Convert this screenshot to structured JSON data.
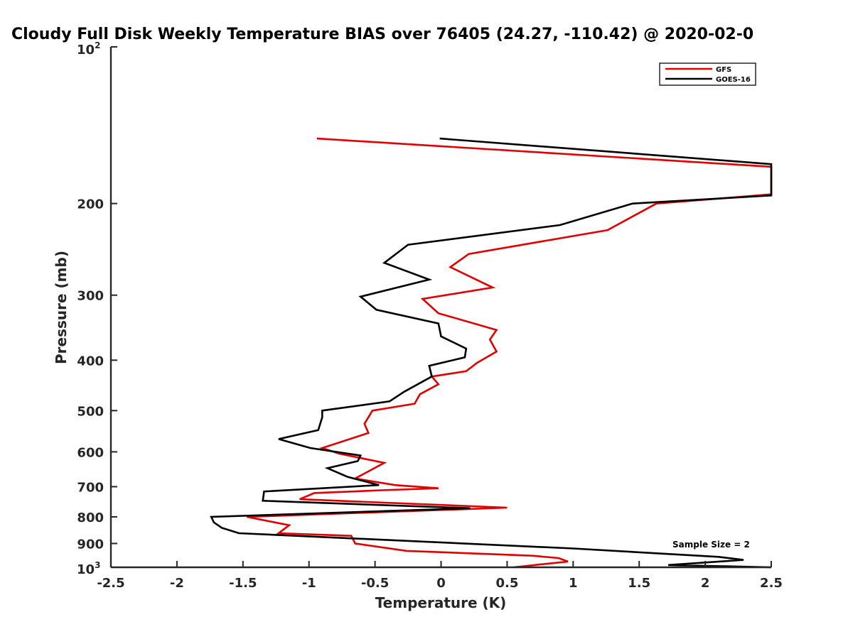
{
  "chart_data": {
    "type": "line",
    "title": "Cloudy Full Disk Weekly Temperature BIAS over 76405 (24.27, -110.42) @ 2020-02-0",
    "xlabel": "Temperature (K)",
    "ylabel": "Pressure (mb)",
    "xlim": [
      -2.5,
      2.5
    ],
    "ylim": [
      100,
      1000
    ],
    "yscale": "log",
    "y_reversed": true,
    "x_ticks": [
      -2.5,
      -2,
      -1.5,
      -1,
      -0.5,
      0,
      0.5,
      1,
      1.5,
      2,
      2.5
    ],
    "x_tick_labels": [
      "-2.5",
      "-2",
      "-1.5",
      "-1",
      "-0.5",
      "0",
      "0.5",
      "1",
      "1.5",
      "2",
      "2.5"
    ],
    "y_ticks": [
      200,
      300,
      400,
      500,
      600,
      700,
      800,
      900
    ],
    "y_tick_labels": [
      "200",
      "300",
      "400",
      "500",
      "600",
      "700",
      "800",
      "900"
    ],
    "y_top_label_base": "10",
    "y_top_label_exp": "2",
    "y_bottom_label_base": "10",
    "y_bottom_label_exp": "3",
    "legend_position": "top-right",
    "annotation": "Sample Size = 2",
    "series": [
      {
        "name": "GFS",
        "color": "#e00000",
        "points": [
          [
            -0.94,
            150
          ],
          [
            2.5,
            170
          ],
          [
            2.5,
            192
          ],
          [
            1.63,
            200
          ],
          [
            1.26,
            225
          ],
          [
            0.21,
            250
          ],
          [
            0.07,
            265
          ],
          [
            0.39,
            290
          ],
          [
            -0.14,
            305
          ],
          [
            -0.02,
            325
          ],
          [
            0.42,
            350
          ],
          [
            0.37,
            365
          ],
          [
            0.42,
            385
          ],
          [
            0.27,
            405
          ],
          [
            0.19,
            420
          ],
          [
            -0.07,
            430
          ],
          [
            -0.02,
            445
          ],
          [
            -0.16,
            465
          ],
          [
            -0.2,
            485
          ],
          [
            -0.52,
            500
          ],
          [
            -0.58,
            530
          ],
          [
            -0.55,
            552
          ],
          [
            -0.9,
            590
          ],
          [
            -0.77,
            605
          ],
          [
            -0.43,
            630
          ],
          [
            -0.53,
            650
          ],
          [
            -0.65,
            675
          ],
          [
            -0.35,
            695
          ],
          [
            -0.02,
            705
          ],
          [
            -0.38,
            710
          ],
          [
            -0.96,
            720
          ],
          [
            -1.07,
            740
          ],
          [
            0.5,
            768
          ],
          [
            -1.47,
            800
          ],
          [
            -1.15,
            830
          ],
          [
            -1.23,
            860
          ],
          [
            -0.68,
            870
          ],
          [
            -0.65,
            900
          ],
          [
            -0.26,
            930
          ],
          [
            0.69,
            950
          ],
          [
            0.89,
            960
          ],
          [
            0.96,
            975
          ],
          [
            0.55,
            1000
          ]
        ]
      },
      {
        "name": "GOES-16",
        "color": "#000000",
        "points": [
          [
            -0.01,
            150
          ],
          [
            2.5,
            168
          ],
          [
            2.5,
            193
          ],
          [
            1.45,
            200
          ],
          [
            0.9,
            220
          ],
          [
            -0.25,
            240
          ],
          [
            -0.43,
            260
          ],
          [
            -0.09,
            280
          ],
          [
            -0.61,
            302
          ],
          [
            -0.49,
            320
          ],
          [
            -0.02,
            340
          ],
          [
            0.0,
            360
          ],
          [
            0.19,
            380
          ],
          [
            0.18,
            395
          ],
          [
            -0.09,
            410
          ],
          [
            -0.07,
            430
          ],
          [
            -0.28,
            460
          ],
          [
            -0.39,
            480
          ],
          [
            -0.9,
            500
          ],
          [
            -0.9,
            515
          ],
          [
            -0.93,
            545
          ],
          [
            -1.23,
            567
          ],
          [
            -0.99,
            590
          ],
          [
            -0.61,
            610
          ],
          [
            -0.63,
            625
          ],
          [
            -0.86,
            645
          ],
          [
            -0.71,
            670
          ],
          [
            -0.47,
            695
          ],
          [
            -1.34,
            715
          ],
          [
            -1.35,
            745
          ],
          [
            0.22,
            770
          ],
          [
            -1.74,
            800
          ],
          [
            -1.72,
            820
          ],
          [
            -1.66,
            840
          ],
          [
            -1.53,
            860
          ],
          [
            1.0,
            920
          ],
          [
            2.1,
            955
          ],
          [
            2.29,
            968
          ],
          [
            1.72,
            990
          ],
          [
            2.5,
            1000
          ]
        ]
      }
    ]
  }
}
